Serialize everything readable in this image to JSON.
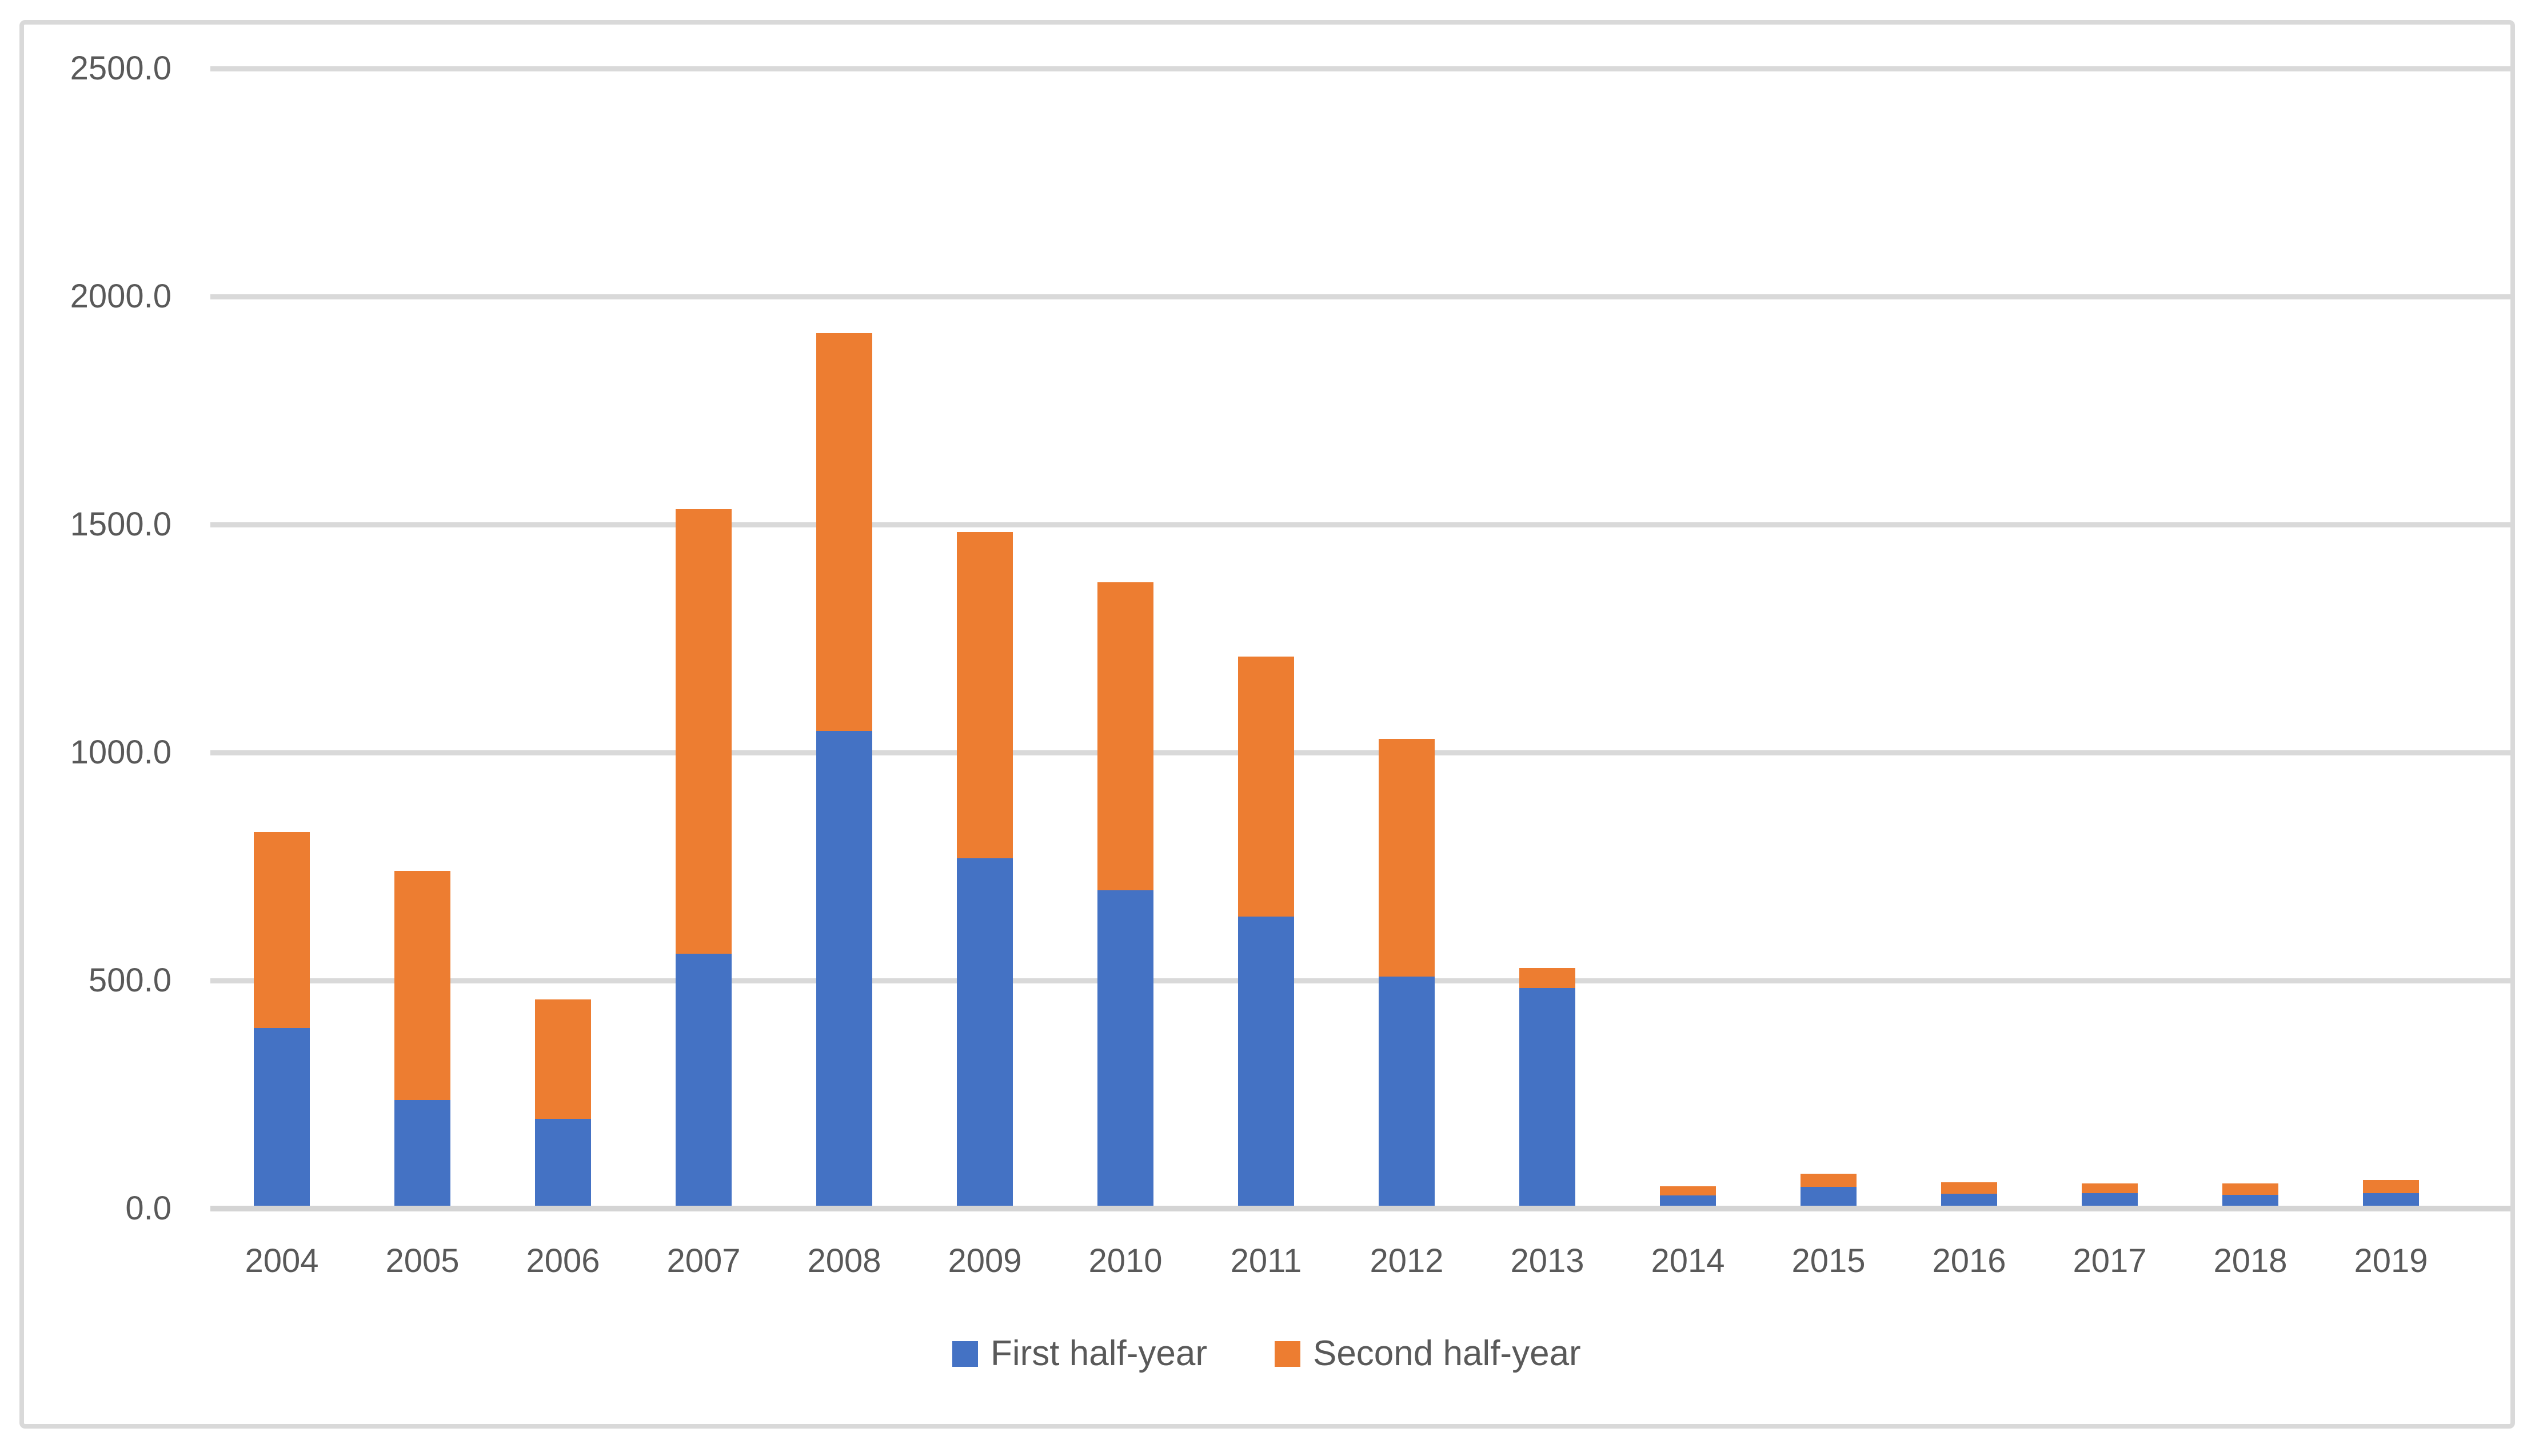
{
  "chart_data": {
    "type": "bar",
    "stacked": true,
    "title": "",
    "xlabel": "",
    "ylabel": "",
    "categories": [
      "2004",
      "2005",
      "2006",
      "2007",
      "2008",
      "2009",
      "2010",
      "2011",
      "2012",
      "2013",
      "2014",
      "2015",
      "2016",
      "2017",
      "2018",
      "2019"
    ],
    "series": [
      {
        "name": "First half-year",
        "color": "#4472C4",
        "values": [
          390,
          232,
          190,
          553,
          1041,
          762,
          692,
          634,
          502,
          478,
          22,
          41,
          26,
          27,
          24,
          28
        ]
      },
      {
        "name": "Second half-year",
        "color": "#ED7D31",
        "values": [
          430,
          502,
          262,
          975,
          872,
          716,
          676,
          570,
          521,
          44,
          20,
          29,
          25,
          21,
          25,
          29
        ]
      }
    ],
    "ylim": [
      0,
      2500
    ],
    "ytick_step": 500,
    "ytick_labels": [
      "0.0",
      "500.0",
      "1000.0",
      "1500.0",
      "2000.0",
      "2500.0"
    ],
    "grid": true,
    "legend_position": "bottom"
  },
  "legend": {
    "items": [
      {
        "label": "First half-year",
        "color": "#4472C4"
      },
      {
        "label": "Second half-year",
        "color": "#ED7D31"
      }
    ]
  },
  "colors": {
    "series_blue": "#4472C4",
    "series_orange": "#ED7D31",
    "gridline": "#D9D9D9",
    "axis_line": "#D4D4D4",
    "tick_text": "#595959",
    "frame_border": "#D9D9D9",
    "background": "#FFFFFF"
  }
}
